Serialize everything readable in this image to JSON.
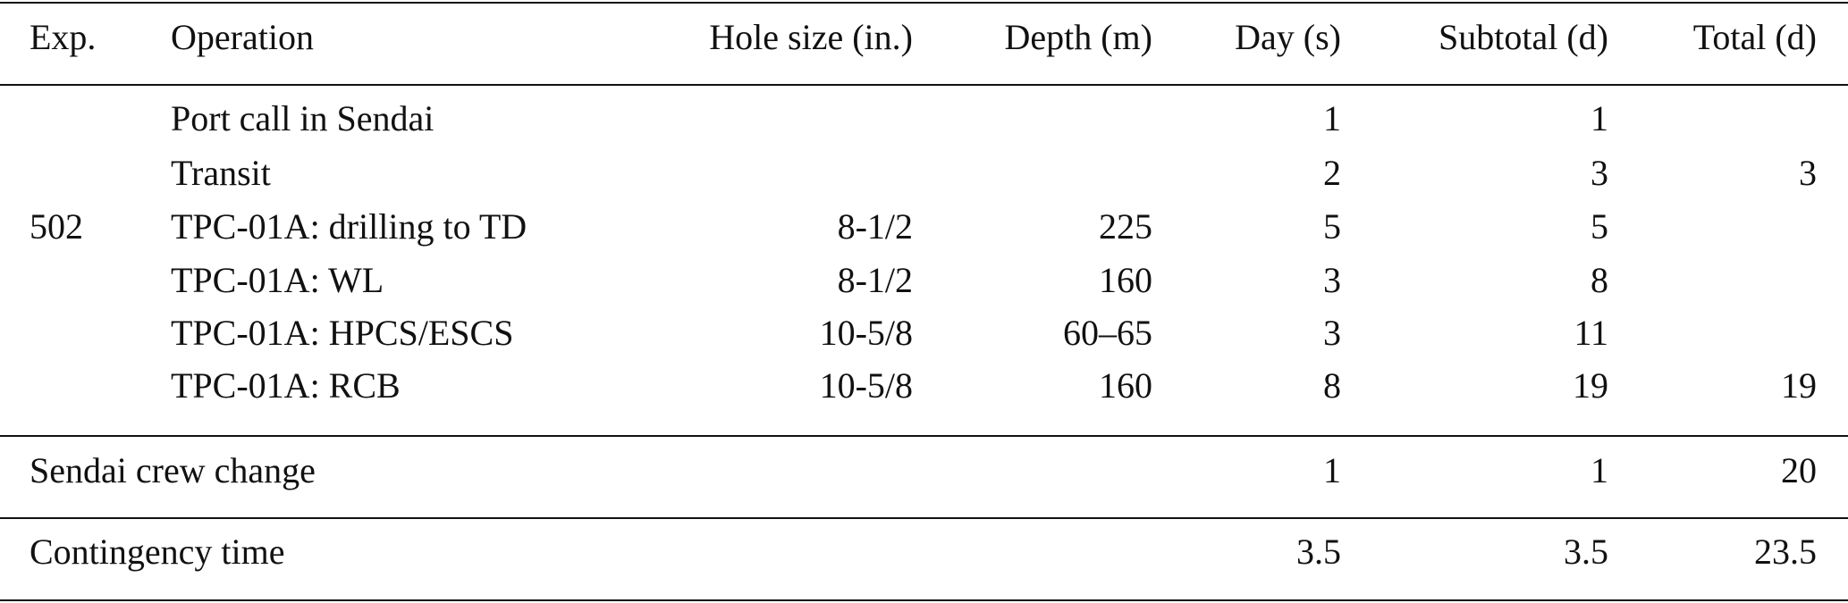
{
  "table": {
    "columns": [
      "Exp.",
      "Operation",
      "Hole size (in.)",
      "Depth (m)",
      "Day (s)",
      "Subtotal (d)",
      "Total (d)"
    ],
    "group": {
      "label": "502",
      "rows": [
        [
          "Port call in Sendai",
          null,
          null,
          "1",
          "1",
          null
        ],
        [
          "Transit",
          null,
          null,
          "2",
          "3",
          "3"
        ],
        [
          "TPC-01A: drilling to TD",
          "8-1/2",
          "225",
          "5",
          "5",
          null
        ],
        [
          "TPC-01A: WL",
          "8-1/2",
          "160",
          "3",
          "8",
          null
        ],
        [
          "TPC-01A: HPCS/ESCS",
          "10-5/8",
          "60–65",
          "3",
          "11",
          null
        ],
        [
          "TPC-01A: RCB",
          "10-5/8",
          "160",
          "8",
          "19",
          "19"
        ]
      ]
    },
    "summary_rows": [
      [
        "Sendai crew change",
        "1",
        "1",
        "20"
      ],
      [
        "Contingency time",
        "3.5",
        "3.5",
        "23.5"
      ]
    ]
  }
}
